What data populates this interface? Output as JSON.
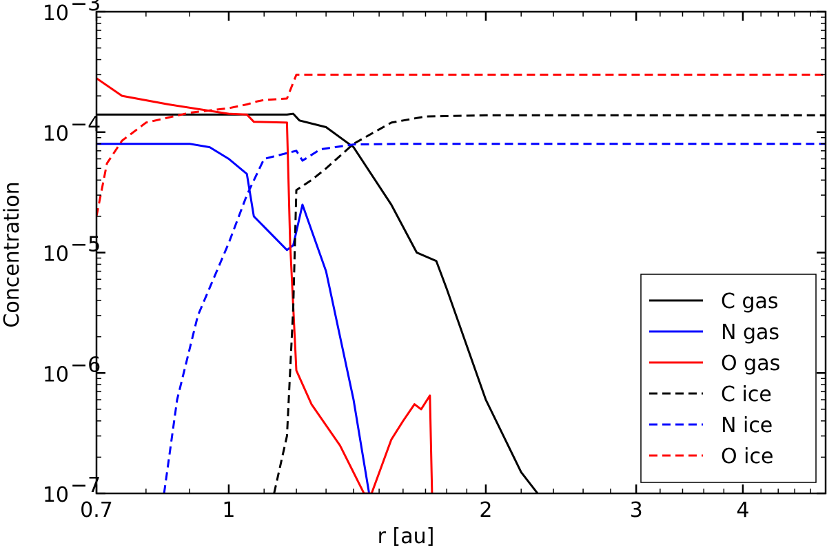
{
  "chart_data": {
    "type": "line",
    "title": "",
    "xlabel": "r [au]",
    "ylabel": "Concentration",
    "xscale": "log",
    "yscale": "log",
    "xlim": [
      0.7,
      5.0
    ],
    "ylim": [
      1e-07,
      0.001
    ],
    "grid": false,
    "legend_position": "lower-right",
    "x_ticks": [
      {
        "value": 0.7,
        "label": "0.7"
      },
      {
        "value": 1,
        "label": "1"
      },
      {
        "value": 2,
        "label": "2"
      },
      {
        "value": 3,
        "label": "3"
      },
      {
        "value": 4,
        "label": "4"
      }
    ],
    "y_ticks": [
      {
        "value": 1e-07,
        "label": "10",
        "exponent": "−7"
      },
      {
        "value": 1e-06,
        "label": "10",
        "exponent": "−6"
      },
      {
        "value": 1e-05,
        "label": "10",
        "exponent": "−5"
      },
      {
        "value": 0.0001,
        "label": "10",
        "exponent": "−4"
      },
      {
        "value": 0.001,
        "label": "10",
        "exponent": "−3"
      }
    ],
    "series": [
      {
        "name": "C gas",
        "color": "#000000",
        "dash": "solid",
        "points": [
          [
            0.7,
            0.00014
          ],
          [
            1.0,
            0.00014
          ],
          [
            1.17,
            0.00014
          ],
          [
            1.19,
            0.000142
          ],
          [
            1.21,
            0.000125
          ],
          [
            1.3,
            0.00011
          ],
          [
            1.4,
            7.5e-05
          ],
          [
            1.55,
            2.5e-05
          ],
          [
            1.66,
            1e-05
          ],
          [
            1.75,
            8.5e-06
          ],
          [
            1.8,
            5e-06
          ],
          [
            2.0,
            6e-07
          ],
          [
            2.2,
            1.5e-07
          ],
          [
            2.3,
            1e-07
          ]
        ]
      },
      {
        "name": "N gas",
        "color": "#0000ff",
        "dash": "solid",
        "points": [
          [
            0.7,
            8e-05
          ],
          [
            0.9,
            8e-05
          ],
          [
            0.95,
            7.5e-05
          ],
          [
            1.0,
            6e-05
          ],
          [
            1.05,
            4.5e-05
          ],
          [
            1.07,
            2e-05
          ],
          [
            1.17,
            1.05e-05
          ],
          [
            1.19,
            1.15e-05
          ],
          [
            1.22,
            2.5e-05
          ],
          [
            1.3,
            7e-06
          ],
          [
            1.4,
            6e-07
          ],
          [
            1.46,
            1e-07
          ]
        ]
      },
      {
        "name": "O gas",
        "color": "#ff0000",
        "dash": "solid",
        "points": [
          [
            0.7,
            0.00028
          ],
          [
            0.75,
            0.0002
          ],
          [
            0.85,
            0.00017
          ],
          [
            1.0,
            0.000142
          ],
          [
            1.05,
            0.00014
          ],
          [
            1.07,
            0.000122
          ],
          [
            1.17,
            0.00012
          ],
          [
            1.18,
            1.2e-05
          ],
          [
            1.2,
            1.05e-06
          ],
          [
            1.25,
            5.5e-07
          ],
          [
            1.35,
            2.5e-07
          ],
          [
            1.44,
            1e-07
          ],
          [
            1.47,
            1e-07
          ],
          [
            1.55,
            2.8e-07
          ],
          [
            1.6,
            4e-07
          ],
          [
            1.65,
            5.5e-07
          ],
          [
            1.68,
            5e-07
          ],
          [
            1.72,
            6.5e-07
          ],
          [
            1.73,
            1e-07
          ]
        ]
      },
      {
        "name": "C ice",
        "color": "#000000",
        "dash": "dashed",
        "points": [
          [
            1.13,
            1e-07
          ],
          [
            1.17,
            3e-07
          ],
          [
            1.19,
            3.5e-06
          ],
          [
            1.2,
            3.3e-05
          ],
          [
            1.25,
            4e-05
          ],
          [
            1.3,
            5e-05
          ],
          [
            1.4,
            8e-05
          ],
          [
            1.55,
            0.00012
          ],
          [
            1.7,
            0.000135
          ],
          [
            2.0,
            0.000138
          ],
          [
            5.0,
            0.000138
          ]
        ]
      },
      {
        "name": "N ice",
        "color": "#0000ff",
        "dash": "dashed",
        "points": [
          [
            0.84,
            1e-07
          ],
          [
            0.87,
            6e-07
          ],
          [
            0.92,
            3e-06
          ],
          [
            1.0,
            1.2e-05
          ],
          [
            1.05,
            3e-05
          ],
          [
            1.1,
            6e-05
          ],
          [
            1.2,
            7e-05
          ],
          [
            1.22,
            5.8e-05
          ],
          [
            1.28,
            7.2e-05
          ],
          [
            1.4,
            7.9e-05
          ],
          [
            1.6,
            8e-05
          ],
          [
            5.0,
            8e-05
          ]
        ]
      },
      {
        "name": "O ice",
        "color": "#ff0000",
        "dash": "dashed",
        "points": [
          [
            0.7,
            2e-05
          ],
          [
            0.72,
            5.5e-05
          ],
          [
            0.75,
            8.5e-05
          ],
          [
            0.8,
            0.00012
          ],
          [
            0.9,
            0.000145
          ],
          [
            1.0,
            0.000158
          ],
          [
            1.05,
            0.00017
          ],
          [
            1.08,
            0.00018
          ],
          [
            1.1,
            0.000185
          ],
          [
            1.17,
            0.00019
          ],
          [
            1.2,
            0.0003
          ],
          [
            5.0,
            0.0003
          ]
        ]
      }
    ]
  }
}
